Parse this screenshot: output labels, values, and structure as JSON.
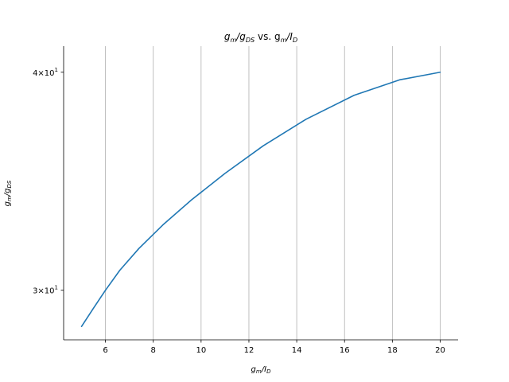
{
  "chart_data": {
    "type": "line",
    "title": {
      "main": "g",
      "sub1": "m",
      "mid": "/g",
      "sub2": "DS",
      "rest": " vs. g",
      "sub3": "m",
      "end": "/I",
      "sub4": "D"
    },
    "xlabel": {
      "main": "g",
      "sub1": "m",
      "mid": "/I",
      "sub2": "D"
    },
    "ylabel": {
      "main": "g",
      "sub1": "m",
      "mid": "/g",
      "sub2": "DS"
    },
    "x_scale": "linear",
    "y_scale": "log",
    "xlim": [
      4.25,
      20.75
    ],
    "ylim": [
      28.1,
      41.4
    ],
    "x_ticks": [
      6,
      8,
      10,
      12,
      14,
      16,
      18,
      20
    ],
    "y_ticks": [
      {
        "value": 30,
        "base": "3",
        "times": "×",
        "exp_base": "10",
        "exp": "1"
      },
      {
        "value": 40,
        "base": "4",
        "times": "×",
        "exp_base": "10",
        "exp": "1"
      }
    ],
    "grid": "x-major",
    "spines": "left-bottom",
    "series": [
      {
        "color": "#1f77b4",
        "x": [
          5.0,
          5.5,
          6.0,
          6.6,
          7.4,
          8.4,
          9.6,
          11.0,
          12.6,
          14.4,
          16.4,
          18.3,
          20.0
        ],
        "y": [
          28.6,
          29.3,
          30.0,
          30.8,
          31.7,
          32.7,
          33.8,
          35.0,
          36.3,
          37.6,
          38.8,
          39.6,
          40.0
        ]
      }
    ]
  }
}
